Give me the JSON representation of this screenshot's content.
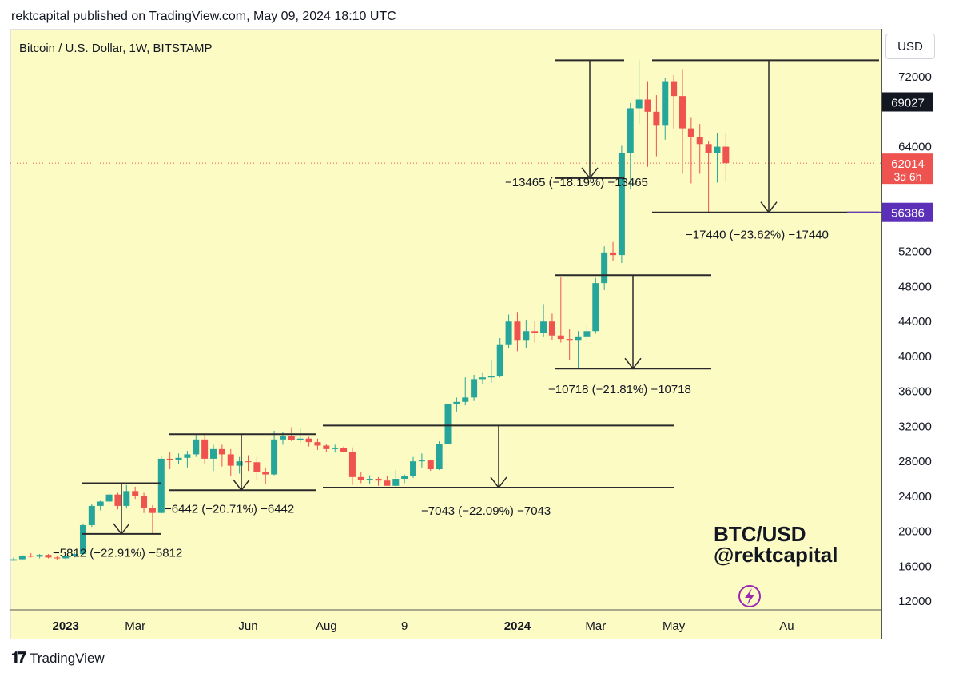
{
  "header": {
    "published": "rektcapital published on TradingView.com, May 09, 2024 18:10 UTC"
  },
  "chart": {
    "symbol_title": "Bitcoin / U.S. Dollar, 1W, BITSTAMP",
    "currency_button": "USD",
    "watermark_line1": "BTC/USD",
    "watermark_line2": "@rektcapital",
    "colors": {
      "background": "#fdfbc4",
      "up": "#26a69a",
      "down": "#ef5350",
      "line": "#2a2a2a"
    }
  },
  "footer": {
    "brand": "TradingView"
  },
  "chart_data": {
    "type": "candlestick",
    "title": "Bitcoin / U.S. Dollar, 1W, BITSTAMP",
    "ylim": [
      10500,
      76000
    ],
    "y_ticks": [
      12000,
      16000,
      20000,
      24000,
      28000,
      32000,
      36000,
      40000,
      44000,
      48000,
      52000,
      56000,
      64000,
      72000
    ],
    "x_ticks": [
      {
        "label": "2023",
        "bold": true,
        "week": 6
      },
      {
        "label": "Mar",
        "bold": false,
        "week": 14
      },
      {
        "label": "Jun",
        "bold": false,
        "week": 27
      },
      {
        "label": "Aug",
        "bold": false,
        "week": 36
      },
      {
        "label": "9",
        "bold": false,
        "week": 45
      },
      {
        "label": "2024",
        "bold": true,
        "week": 58
      },
      {
        "label": "Mar",
        "bold": false,
        "week": 67
      },
      {
        "label": "May",
        "bold": false,
        "week": 76
      },
      {
        "label": "Au",
        "bold": false,
        "week": 89
      }
    ],
    "price_labels": [
      {
        "value": 69027,
        "text": "69027",
        "style": "black"
      },
      {
        "value": 62014,
        "text": "62014",
        "sub": "3d 6h",
        "style": "red"
      },
      {
        "value": 56386,
        "text": "56386",
        "style": "purple"
      }
    ],
    "candles": [
      [
        16550,
        16900,
        16500,
        16700
      ],
      [
        16700,
        17200,
        16600,
        17100
      ],
      [
        17100,
        17400,
        16900,
        17000
      ],
      [
        17000,
        17300,
        16800,
        17200
      ],
      [
        17200,
        17300,
        16800,
        16900
      ],
      [
        16900,
        17100,
        16600,
        16800
      ],
      [
        16800,
        17200,
        16700,
        17100
      ],
      [
        17100,
        17500,
        16900,
        17300
      ],
      [
        17300,
        20800,
        17200,
        20600
      ],
      [
        20600,
        23000,
        20400,
        22800
      ],
      [
        22800,
        23400,
        22300,
        23300
      ],
      [
        23300,
        24300,
        23100,
        24100
      ],
      [
        24100,
        24300,
        22400,
        22800
      ],
      [
        22800,
        25200,
        22500,
        24500
      ],
      [
        24500,
        25000,
        23600,
        23900
      ],
      [
        23900,
        24300,
        22000,
        22600
      ],
      [
        22600,
        22900,
        19600,
        22000
      ],
      [
        22000,
        28500,
        21900,
        28200
      ],
      [
        28200,
        29000,
        27000,
        28100
      ],
      [
        28100,
        28800,
        27600,
        28300
      ],
      [
        28300,
        29100,
        27200,
        28700
      ],
      [
        28700,
        30900,
        28400,
        30400
      ],
      [
        30400,
        31000,
        27600,
        28200
      ],
      [
        28200,
        29800,
        26800,
        29300
      ],
      [
        29300,
        29800,
        27300,
        28700
      ],
      [
        28700,
        29300,
        26200,
        27400
      ],
      [
        27400,
        28400,
        26500,
        27900
      ],
      [
        27900,
        28600,
        26800,
        27800
      ],
      [
        27800,
        28400,
        25800,
        26700
      ],
      [
        26700,
        27200,
        25300,
        26400
      ],
      [
        26400,
        31400,
        26300,
        30400
      ],
      [
        30400,
        31300,
        29800,
        30800
      ],
      [
        30800,
        31800,
        30200,
        30300
      ],
      [
        30300,
        31700,
        30000,
        30500
      ],
      [
        30500,
        30700,
        29600,
        30100
      ],
      [
        30100,
        30500,
        29200,
        29700
      ],
      [
        29700,
        29900,
        29000,
        29300
      ],
      [
        29300,
        29800,
        28900,
        29400
      ],
      [
        29400,
        29600,
        28900,
        29000
      ],
      [
        29000,
        29500,
        25200,
        26100
      ],
      [
        26100,
        26700,
        25400,
        25800
      ],
      [
        25800,
        26300,
        25300,
        25900
      ],
      [
        25900,
        26100,
        25100,
        25700
      ],
      [
        25700,
        26200,
        25200,
        25100
      ],
      [
        25100,
        26900,
        25000,
        25900
      ],
      [
        25900,
        26400,
        25400,
        26200
      ],
      [
        26200,
        28400,
        26000,
        27900
      ],
      [
        27900,
        28800,
        27200,
        28000
      ],
      [
        28000,
        28100,
        26800,
        27000
      ],
      [
        27000,
        30200,
        26900,
        29900
      ],
      [
        29900,
        35000,
        29800,
        34500
      ],
      [
        34500,
        35200,
        33600,
        34700
      ],
      [
        34700,
        37500,
        34300,
        35200
      ],
      [
        35200,
        37800,
        34800,
        37300
      ],
      [
        37300,
        38000,
        36700,
        37500
      ],
      [
        37500,
        39500,
        36900,
        37700
      ],
      [
        37700,
        42000,
        37500,
        41200
      ],
      [
        41200,
        44700,
        40800,
        43900
      ],
      [
        43900,
        45000,
        40500,
        41700
      ],
      [
        41700,
        44100,
        40900,
        42800
      ],
      [
        42800,
        44000,
        41500,
        42600
      ],
      [
        42600,
        45900,
        42100,
        43900
      ],
      [
        43900,
        44800,
        41800,
        42300
      ],
      [
        42300,
        49000,
        41500,
        41900
      ],
      [
        41900,
        43000,
        39500,
        41700
      ],
      [
        41700,
        42800,
        38600,
        42200
      ],
      [
        42200,
        43500,
        41800,
        42800
      ],
      [
        42800,
        48900,
        42500,
        48300
      ],
      [
        48300,
        52500,
        47500,
        51800
      ],
      [
        51800,
        53000,
        50800,
        51500
      ],
      [
        51500,
        64000,
        50600,
        63200
      ],
      [
        63200,
        68900,
        59000,
        68300
      ],
      [
        68300,
        73800,
        66500,
        69300
      ],
      [
        69300,
        71400,
        61600,
        67900
      ],
      [
        67900,
        69800,
        62800,
        66300
      ],
      [
        66300,
        71800,
        64700,
        71400
      ],
      [
        71400,
        72100,
        66000,
        69700
      ],
      [
        69700,
        72800,
        60800,
        66000
      ],
      [
        66000,
        67200,
        59700,
        65000
      ],
      [
        65000,
        66500,
        60800,
        64200
      ],
      [
        64200,
        64500,
        56400,
        63200
      ],
      [
        63200,
        65500,
        59800,
        63900
      ],
      [
        63900,
        65400,
        60000,
        62014
      ]
    ],
    "annotations": [
      {
        "label": "−5812 (−22.91%) −5812"
      },
      {
        "label": "−6442 (−20.71%) −6442"
      },
      {
        "label": "−7043 (−22.09%) −7043"
      },
      {
        "label": "−10718 (−21.81%) −10718"
      },
      {
        "label": "−13465 (−18.19%) −13465"
      },
      {
        "label": "−17440 (−23.62%) −17440"
      }
    ]
  }
}
